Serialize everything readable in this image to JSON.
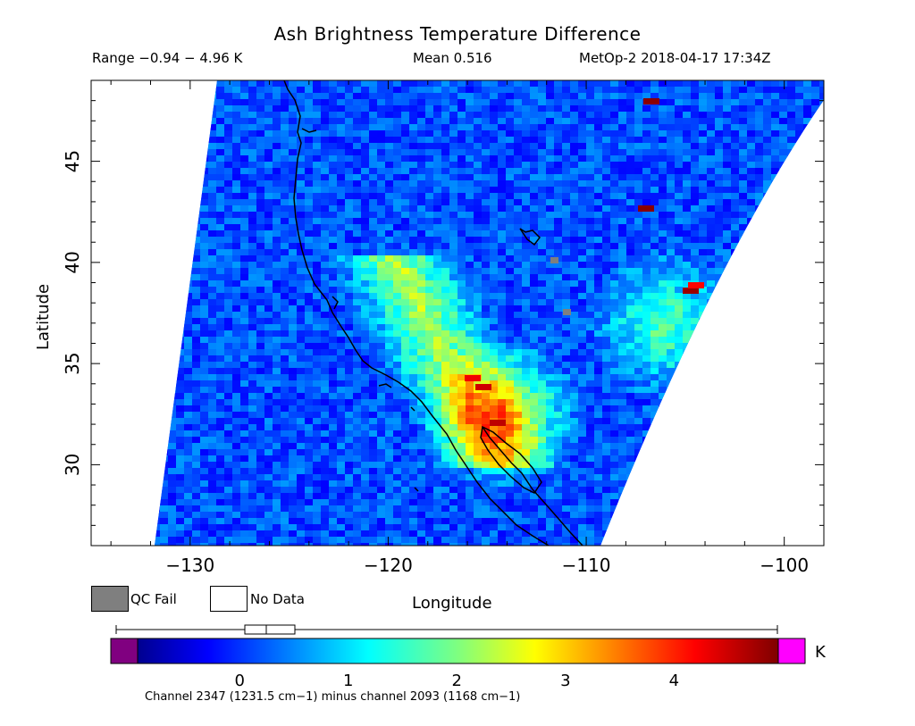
{
  "header": {
    "title": "Ash Brightness Temperature Difference",
    "range_text": "Range −0.94 − 4.96 K",
    "mean_text": "Mean 0.516",
    "satellite_time": "MetOp-2 2018-04-17 17:34Z"
  },
  "axes": {
    "xlabel": "Longitude",
    "ylabel": "Latitude",
    "x_ticks": [
      "−130",
      "−120",
      "−110",
      "−100"
    ],
    "y_ticks": [
      "30",
      "35",
      "40",
      "45"
    ]
  },
  "legend": {
    "qc_fail_label": "QC Fail",
    "no_data_label": "No Data",
    "qc_fail_color": "#7f7f7f",
    "no_data_color": "#ffffff"
  },
  "colorbar": {
    "unit": "K",
    "tick_labels": [
      "0",
      "1",
      "2",
      "3",
      "4"
    ],
    "range": [
      -0.94,
      4.96
    ],
    "under_color": "#800080",
    "over_color": "#ff00ff",
    "caption": "Channel 2347 (1231.5 cm−1) minus channel 2093 (1168 cm−1)"
  },
  "map": {
    "projection": "lat-lon",
    "lon_range": [
      -135,
      -98
    ],
    "lat_range": [
      26,
      49
    ],
    "coastline_color": "#000000"
  }
}
